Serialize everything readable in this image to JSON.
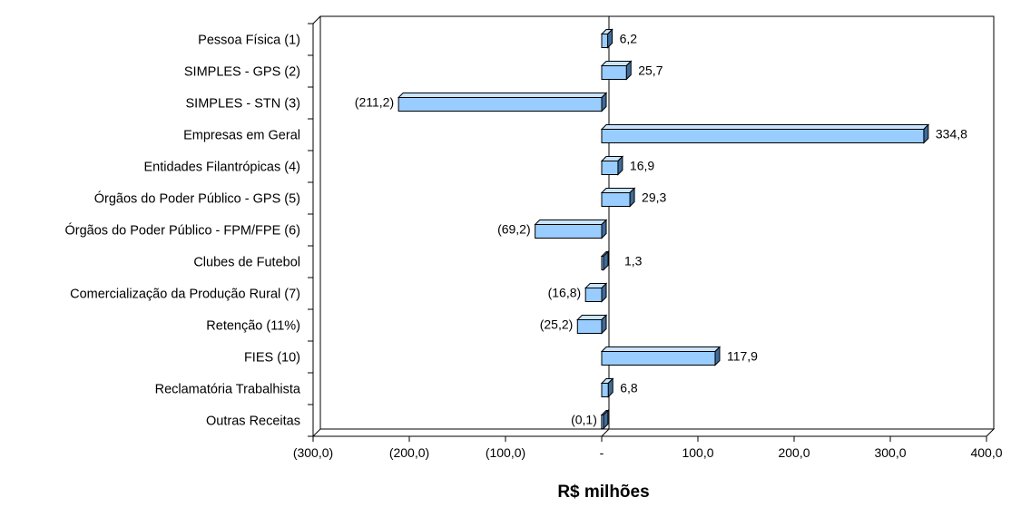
{
  "chart_data": {
    "type": "bar",
    "orientation": "horizontal",
    "title": "",
    "xlabel": "R$ milhões",
    "ylabel": "",
    "xlim": [
      -300,
      400
    ],
    "x_ticks": [
      -300,
      -200,
      -100,
      0,
      100,
      200,
      300,
      400
    ],
    "x_tick_labels": [
      "(300,0)",
      "(200,0)",
      "(100,0)",
      "-",
      "100,0",
      "200,0",
      "300,0",
      "400,0"
    ],
    "categories": [
      "Pessoa Física (1)",
      "SIMPLES - GPS (2)",
      "SIMPLES - STN (3)",
      "Empresas em Geral",
      "Entidades Filantrópicas (4)",
      "Órgãos do Poder Público - GPS (5)",
      "Órgãos do Poder Público - FPM/FPE (6)",
      "Clubes de Futebol",
      "Comercialização da Produção Rural (7)",
      "Retenção (11%)",
      "FIES (10)",
      "Reclamatória Trabalhista",
      "Outras Receitas"
    ],
    "values": [
      6.2,
      25.7,
      -211.2,
      334.8,
      16.9,
      29.3,
      -69.2,
      1.3,
      -16.8,
      -25.2,
      117.9,
      6.8,
      -0.1
    ],
    "data_labels": [
      "6,2",
      "25,7",
      "(211,2)",
      "334,8",
      "16,9",
      "29,3",
      "(69,2)",
      "1,3",
      "(16,8)",
      "(25,2)",
      "117,9",
      "6,8",
      "(0,1)"
    ],
    "grid": false,
    "legend": "none",
    "bar_color": "#99CCFF",
    "bar_top_color": "#C9E4FF",
    "bar_side_color": "#3F6C99",
    "edge_color": "#000000"
  }
}
